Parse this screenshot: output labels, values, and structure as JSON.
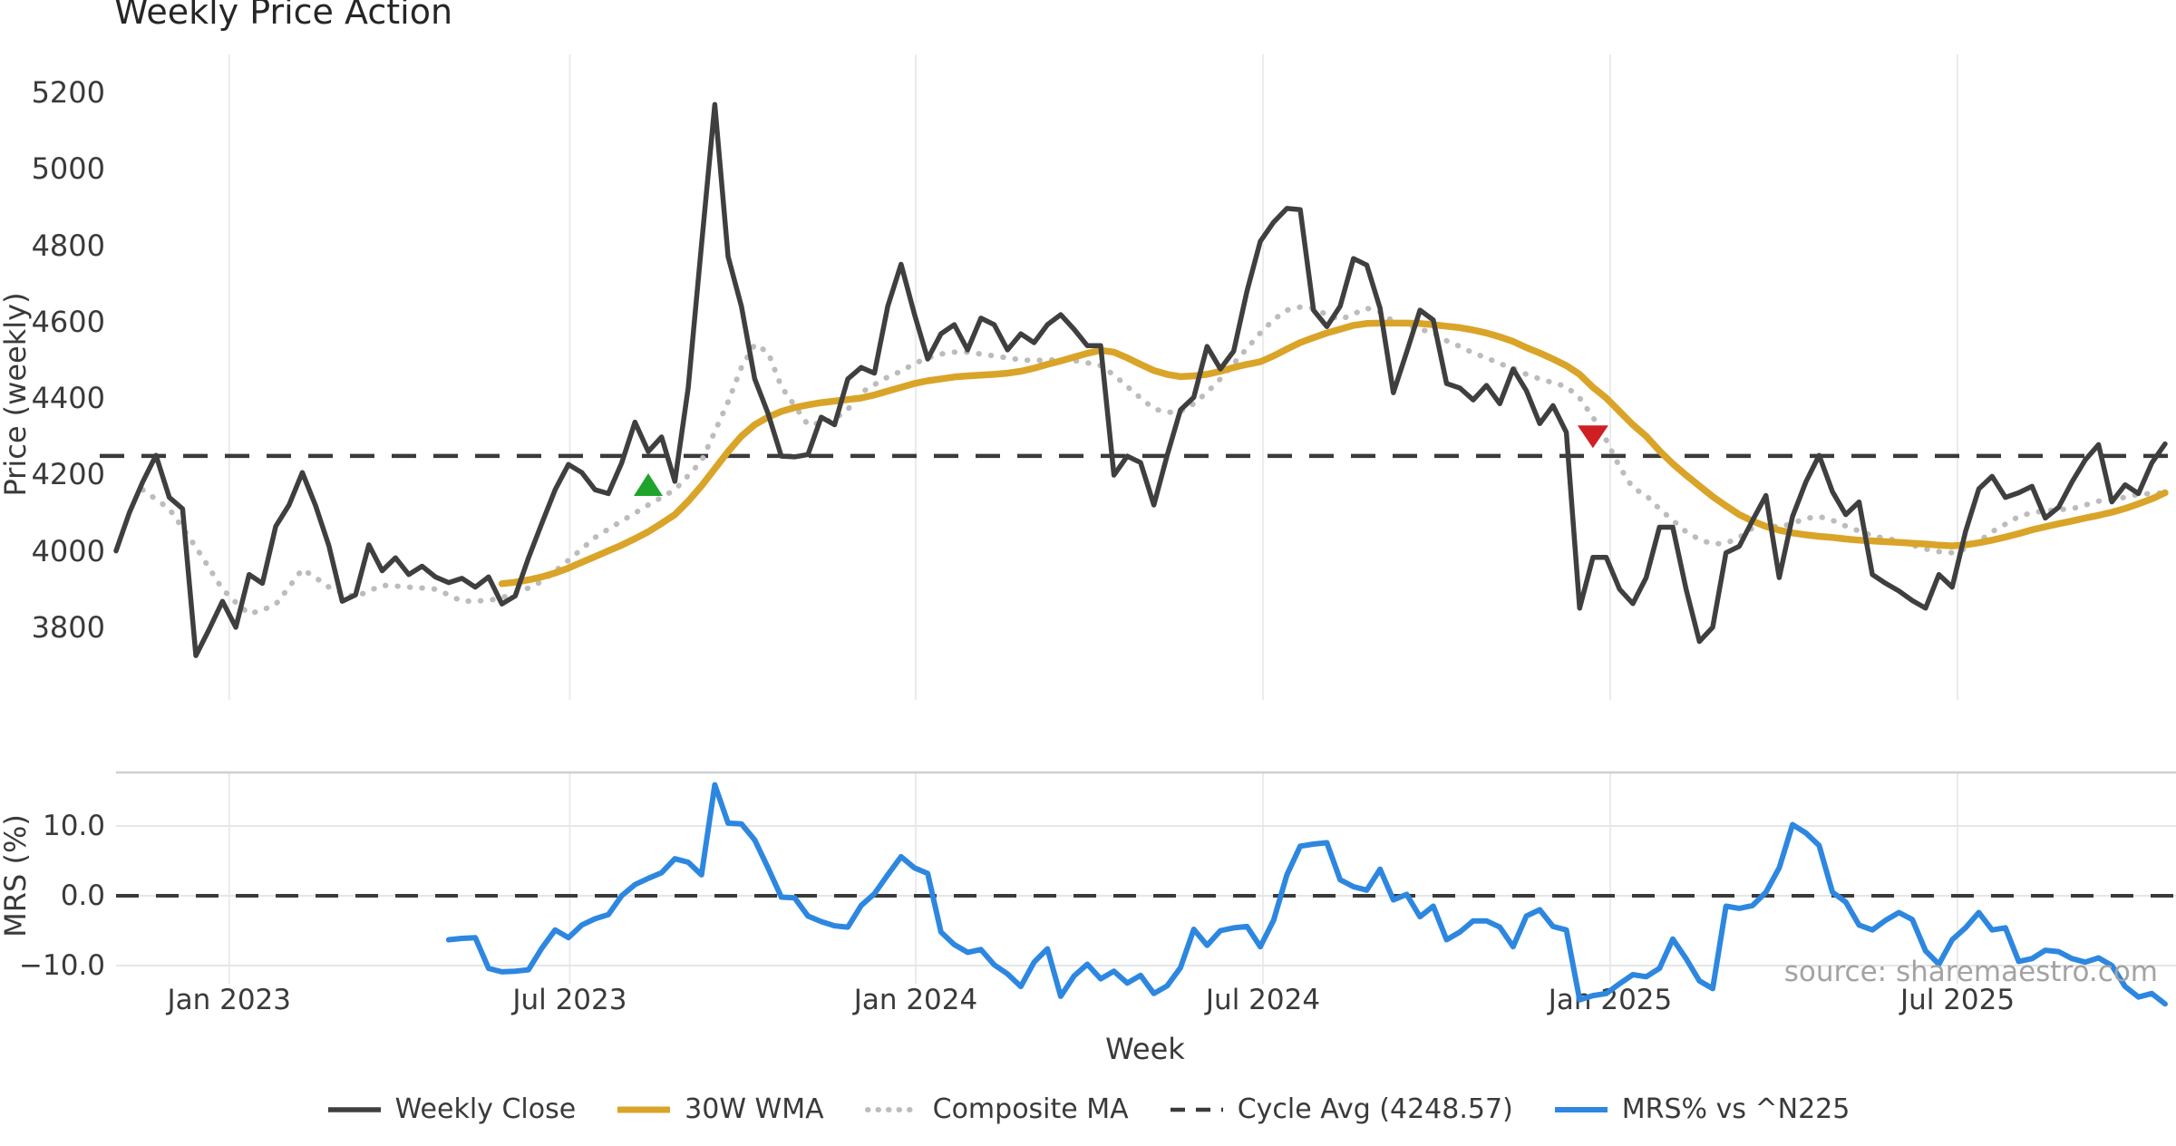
{
  "watermark": "source: sharemaestro.com",
  "legend": {
    "items": [
      {
        "label": "Weekly Close",
        "color": "#3f3f3f",
        "style": "solid"
      },
      {
        "label": "30W WMA",
        "color": "#d9a428",
        "style": "solid"
      },
      {
        "label": "Composite MA",
        "color": "#bcbcbc",
        "style": "dotted"
      },
      {
        "label": "Cycle Avg (4248.57)",
        "color": "#3a3a3a",
        "style": "dashed"
      },
      {
        "label": "MRS% vs ^N225",
        "color": "#2d87e0",
        "style": "solid"
      }
    ]
  },
  "chart_data": [
    {
      "type": "line",
      "title": "Weekly Price Action",
      "ylabel": "Price (weekly)",
      "ylim": [
        3650,
        5300
      ],
      "ytick_labels": [
        "5200",
        "5000",
        "4800",
        "4600",
        "4400",
        "4200",
        "4000",
        "3800"
      ],
      "yticks": [
        5200,
        5000,
        4800,
        4600,
        4400,
        4200,
        4000,
        3800
      ],
      "x_axis": {
        "label": "Week",
        "tick_labels": [
          "Jan 2023",
          "Jul 2023",
          "Jan 2024",
          "Jul 2024",
          "Jan 2025",
          "Jul 2025"
        ],
        "tick_weeks": [
          8.5,
          34.1,
          60.1,
          86.2,
          112.3,
          138.4
        ],
        "n_weeks": 155
      },
      "cycle_avg": 4248.57,
      "series": [
        {
          "name": "Weekly Close",
          "start_week": 0,
          "values": [
            4000,
            4100,
            4180,
            4250,
            4140,
            4110,
            3726,
            3795,
            3868,
            3800,
            3938,
            3915,
            4064,
            4120,
            4205,
            4118,
            4013,
            3868,
            3885,
            4016,
            3948,
            3982,
            3938,
            3960,
            3932,
            3917,
            3928,
            3905,
            3932,
            3861,
            3882,
            3982,
            4072,
            4160,
            4226,
            4205,
            4160,
            4150,
            4230,
            4337,
            4260,
            4298,
            4182,
            4426,
            4800,
            5168,
            4770,
            4640,
            4450,
            4360,
            4248,
            4246,
            4252,
            4350,
            4330,
            4450,
            4480,
            4465,
            4640,
            4750,
            4620,
            4502,
            4568,
            4592,
            4526,
            4609,
            4592,
            4526,
            4568,
            4545,
            4592,
            4618,
            4580,
            4537,
            4537,
            4198,
            4248,
            4231,
            4120,
            4250,
            4369,
            4402,
            4535,
            4476,
            4523,
            4680,
            4810,
            4860,
            4896,
            4893,
            4630,
            4587,
            4640,
            4765,
            4748,
            4635,
            4414,
            4520,
            4630,
            4604,
            4438,
            4426,
            4395,
            4433,
            4385,
            4476,
            4419,
            4333,
            4380,
            4310,
            3850,
            3983,
            3983,
            3900,
            3862,
            3930,
            4062,
            4062,
            3900,
            3763,
            3800,
            3995,
            4012,
            4080,
            4145,
            3930,
            4090,
            4180,
            4250,
            4155,
            4095,
            4128,
            3938,
            3915,
            3895,
            3870,
            3850,
            3938,
            3905,
            4050,
            4162,
            4195,
            4140,
            4152,
            4169,
            4086,
            4114,
            4180,
            4238,
            4278,
            4128,
            4173,
            4150,
            4230,
            4280
          ]
        },
        {
          "name": "30W WMA",
          "start_week": 29,
          "values": [
            3914,
            3918,
            3924,
            3932,
            3942,
            3955,
            3970,
            3985,
            4000,
            4015,
            4032,
            4050,
            4072,
            4095,
            4130,
            4170,
            4215,
            4260,
            4300,
            4330,
            4350,
            4365,
            4375,
            4382,
            4388,
            4392,
            4396,
            4400,
            4408,
            4418,
            4428,
            4438,
            4445,
            4450,
            4455,
            4458,
            4460,
            4462,
            4465,
            4470,
            4478,
            4488,
            4497,
            4507,
            4517,
            4525,
            4520,
            4505,
            4488,
            4472,
            4462,
            4456,
            4458,
            4462,
            4470,
            4480,
            4488,
            4495,
            4510,
            4528,
            4545,
            4558,
            4570,
            4580,
            4590,
            4595,
            4596,
            4596,
            4596,
            4595,
            4592,
            4588,
            4584,
            4578,
            4570,
            4560,
            4548,
            4532,
            4518,
            4502,
            4485,
            4462,
            4428,
            4400,
            4365,
            4330,
            4300,
            4262,
            4228,
            4198,
            4170,
            4142,
            4118,
            4095,
            4078,
            4064,
            4054,
            4047,
            4042,
            4038,
            4035,
            4031,
            4028,
            4026,
            4024,
            4022,
            4020,
            4018,
            4015,
            4013,
            4016,
            4021,
            4028,
            4036,
            4045,
            4055,
            4063,
            4071,
            4078,
            4086,
            4093,
            4101,
            4111,
            4123,
            4136,
            4152
          ]
        },
        {
          "name": "Composite MA",
          "start_week": 2,
          "values": [
            4160,
            4135,
            4110,
            4060,
            4010,
            3955,
            3900,
            3865,
            3835,
            3845,
            3860,
            3905,
            3952,
            3930,
            3905,
            3890,
            3880,
            3895,
            3910,
            3908,
            3905,
            3903,
            3900,
            3885,
            3868,
            3869,
            3870,
            3878,
            3888,
            3903,
            3920,
            3947,
            3975,
            4005,
            4035,
            4057,
            4078,
            4099,
            4120,
            4140,
            4160,
            4197,
            4235,
            4312,
            4390,
            4480,
            4540,
            4520,
            4430,
            4380,
            4330,
            4335,
            4345,
            4370,
            4414,
            4435,
            4455,
            4470,
            4490,
            4505,
            4515,
            4520,
            4520,
            4515,
            4510,
            4505,
            4500,
            4498,
            4500,
            4500,
            4498,
            4492,
            4485,
            4460,
            4430,
            4400,
            4372,
            4362,
            4365,
            4385,
            4415,
            4450,
            4490,
            4530,
            4570,
            4605,
            4630,
            4638,
            4635,
            4618,
            4605,
            4620,
            4635,
            4625,
            4600,
            4590,
            4580,
            4570,
            4550,
            4535,
            4518,
            4505,
            4490,
            4478,
            4462,
            4450,
            4440,
            4430,
            4400,
            4350,
            4290,
            4220,
            4165,
            4145,
            4110,
            4080,
            4050,
            4030,
            4018,
            4020,
            4035,
            4060,
            4068,
            4062,
            4072,
            4085,
            4090,
            4080,
            4065,
            4052,
            4040,
            4032,
            4028,
            4015,
            4005,
            3998,
            3995,
            4005,
            4025,
            4050,
            4070,
            4090,
            4100,
            4105,
            4108,
            4110,
            4120,
            4130,
            4135,
            4140,
            4148,
            4150,
            4152
          ]
        }
      ],
      "markers": [
        {
          "name": "buy-signal",
          "shape": "triangle-up",
          "week": 40,
          "price": 4170,
          "color": "#1fa32c"
        },
        {
          "name": "sell-signal",
          "shape": "triangle-down",
          "week": 111,
          "price": 4302,
          "color": "#cf1f25"
        }
      ]
    },
    {
      "type": "line",
      "ylabel": "MRS (%)",
      "ylim": [
        -17,
        18
      ],
      "ytick_labels": [
        "10.0",
        "0.0",
        "−10.0"
      ],
      "yticks": [
        10,
        0,
        -10
      ],
      "zero_line": 0,
      "series": [
        {
          "name": "MRS% vs ^N225",
          "start_week": 25,
          "values": [
            -6.3,
            -6.1,
            -6.0,
            -10.4,
            -10.9,
            -10.8,
            -10.6,
            -7.5,
            -4.9,
            -6.0,
            -4.2,
            -3.3,
            -2.7,
            0.0,
            1.6,
            2.5,
            3.3,
            5.3,
            4.8,
            3.0,
            15.9,
            10.4,
            10.3,
            8.0,
            4.0,
            -0.2,
            -0.3,
            -2.9,
            -3.7,
            -4.3,
            -4.5,
            -1.4,
            0.3,
            3.0,
            5.6,
            4.0,
            3.2,
            -5.2,
            -7.0,
            -8.1,
            -7.7,
            -9.9,
            -11.2,
            -13.0,
            -9.5,
            -7.6,
            -14.4,
            -11.5,
            -9.8,
            -11.9,
            -10.8,
            -12.5,
            -11.4,
            -14.0,
            -12.9,
            -10.3,
            -4.8,
            -7.1,
            -5.0,
            -4.6,
            -4.4,
            -7.3,
            -3.5,
            3.0,
            7.1,
            7.4,
            7.6,
            2.3,
            1.3,
            0.8,
            3.8,
            -0.6,
            0.2,
            -3.0,
            -1.5,
            -6.3,
            -5.2,
            -3.6,
            -3.6,
            -4.5,
            -7.3,
            -2.9,
            -2.0,
            -4.4,
            -4.9,
            -14.9,
            -14.3,
            -14.0,
            -12.6,
            -11.3,
            -11.6,
            -10.4,
            -6.2,
            -9.0,
            -12.2,
            -13.3,
            -1.5,
            -1.8,
            -1.4,
            0.5,
            4.0,
            10.2,
            9.0,
            7.2,
            0.5,
            -0.9,
            -4.2,
            -4.9,
            -3.5,
            -2.4,
            -3.4,
            -7.9,
            -9.8,
            -6.3,
            -4.6,
            -2.4,
            -4.9,
            -4.6,
            -9.4,
            -9.0,
            -7.8,
            -8.0,
            -9.0,
            -9.5,
            -8.9,
            -10.0,
            -13.0,
            -14.5,
            -14.0,
            -15.5
          ]
        }
      ]
    }
  ]
}
